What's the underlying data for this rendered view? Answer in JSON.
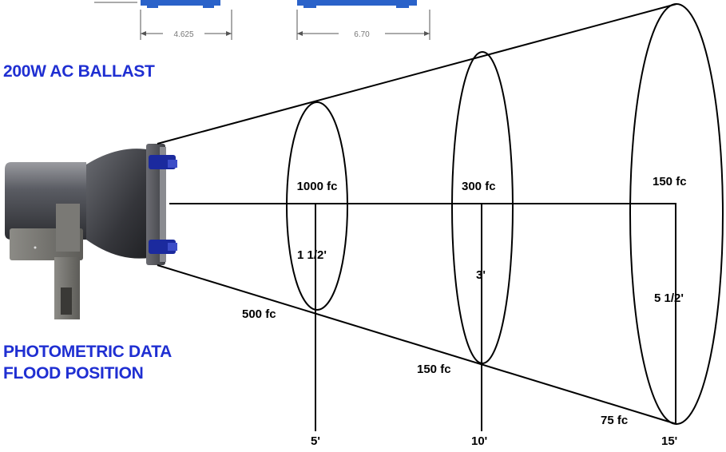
{
  "headings": {
    "ballast": "200W AC BALLAST",
    "photometric_line1": "PHOTOMETRIC DATA",
    "photometric_line2": "FLOOD POSITION"
  },
  "dimensions": {
    "left": "4.625",
    "right": "6.70"
  },
  "rings": [
    {
      "distance": "5'",
      "center_fc": "1000 fc",
      "edge_fc": "500 fc",
      "diameter": "1 1/2'"
    },
    {
      "distance": "10'",
      "center_fc": "300 fc",
      "edge_fc": "150 fc",
      "diameter": "3'"
    },
    {
      "distance": "15'",
      "center_fc": "150 fc",
      "edge_fc": "75 fc",
      "diameter": "5 1/2'"
    }
  ],
  "colors": {
    "heading": "#1f2fd2",
    "bracket": "#2a62c9",
    "lines": "#000000"
  },
  "icons": {
    "fixture": "floodlight-fixture-icon"
  }
}
